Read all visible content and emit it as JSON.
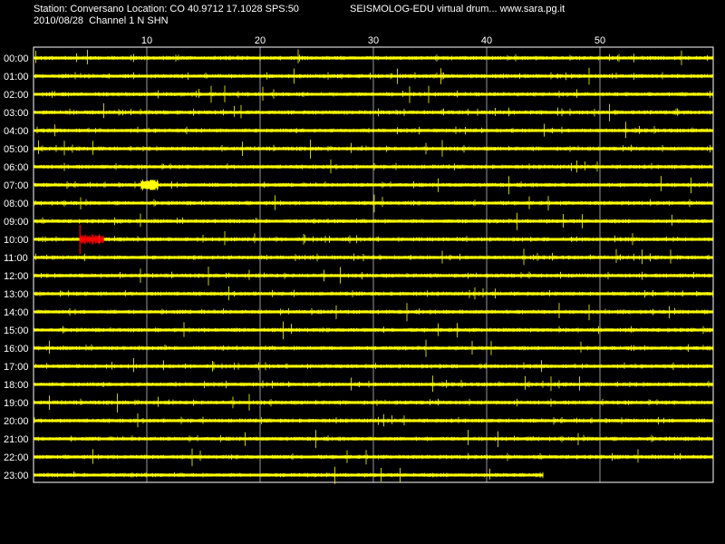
{
  "header": {
    "station_info": "Station: Conversano Location: CO 40.9712 17.1028 SPS:50",
    "site_info": "SEISMOLOG-EDU virtual drum... www.sara.pg.it",
    "date_channel": "2010/08/28  Channel 1 N SHN"
  },
  "drum": {
    "minute_labels": [
      "10",
      "20",
      "30",
      "40",
      "50"
    ],
    "minute_values": [
      10,
      20,
      30,
      40,
      50
    ],
    "minutes_per_line": 60,
    "hour_labels": [
      "00:00",
      "01:00",
      "02:00",
      "03:00",
      "04:00",
      "05:00",
      "06:00",
      "07:00",
      "08:00",
      "09:00",
      "10:00",
      "11:00",
      "12:00",
      "13:00",
      "14:00",
      "15:00",
      "16:00",
      "17:00",
      "18:00",
      "19:00",
      "20:00",
      "21:00",
      "22:00",
      "23:00"
    ],
    "last_line_end_minute": 45,
    "event_marker": {
      "hour_index": 10,
      "start_minute": 4.1,
      "end_minute": 6.2
    },
    "colors": {
      "background": "#000000",
      "trace": "#ffff00",
      "event": "#ff0000",
      "grid": "#ffffff",
      "text": "#ffffff"
    }
  }
}
